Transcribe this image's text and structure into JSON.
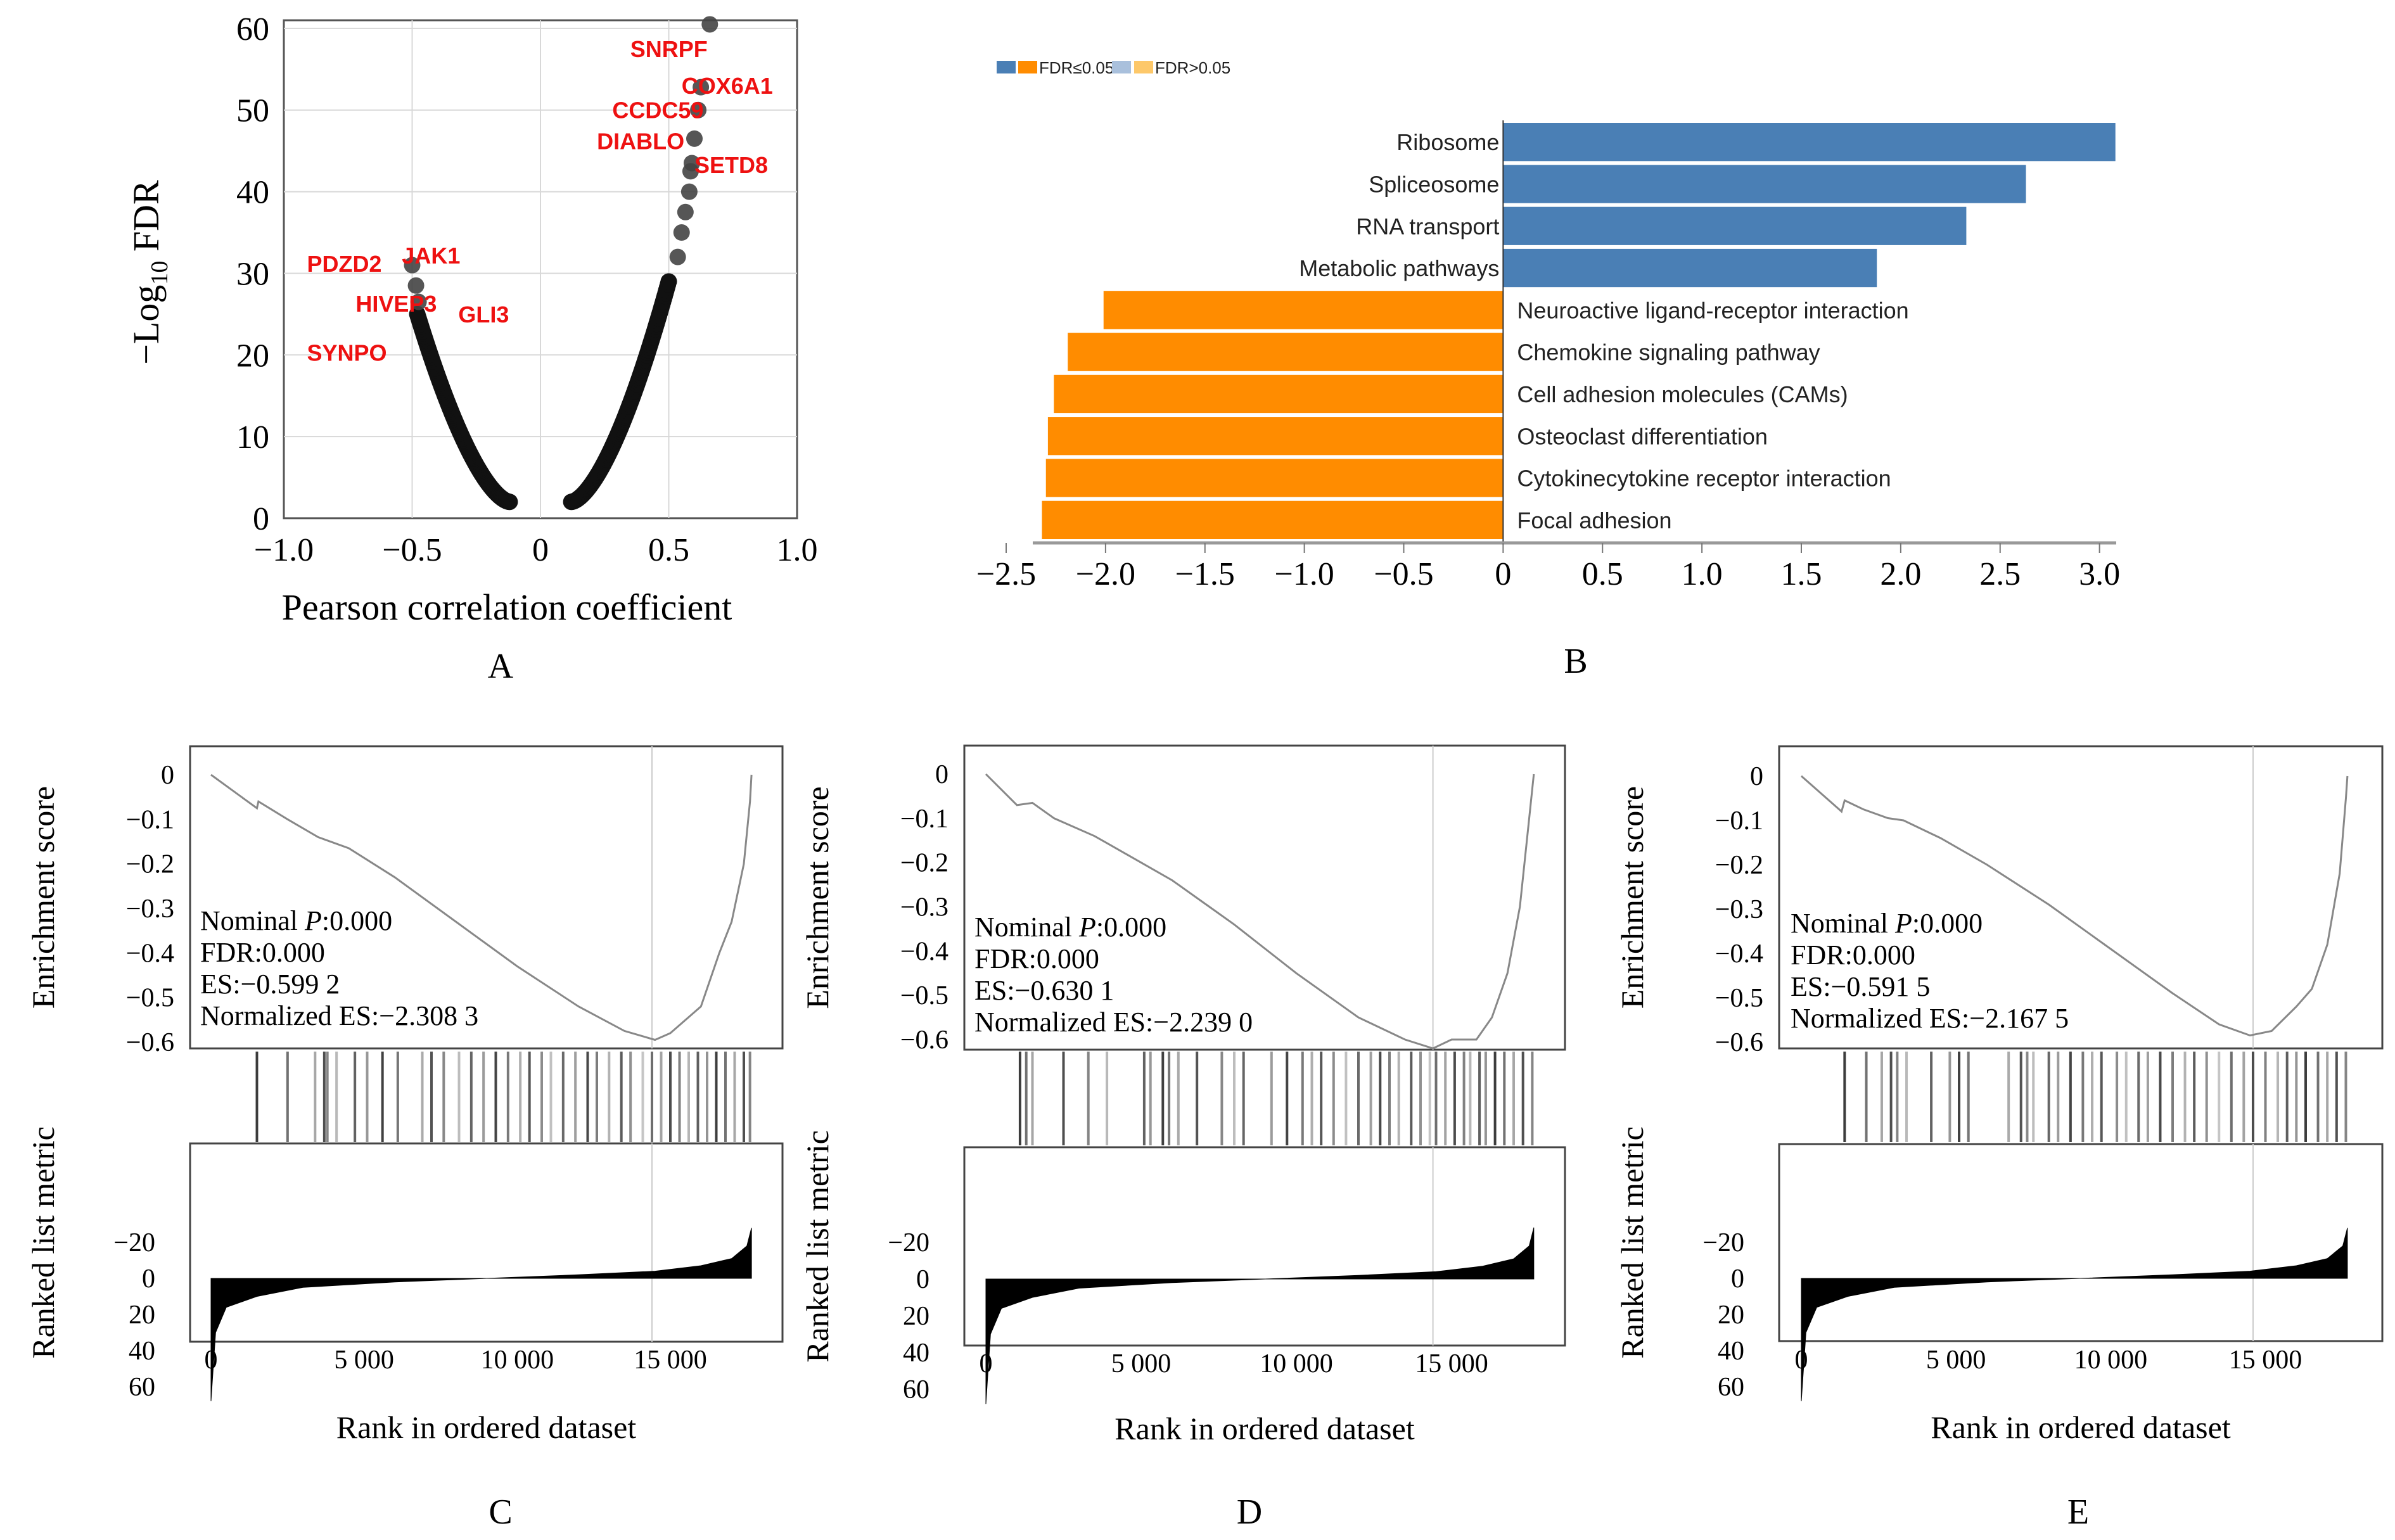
{
  "chart_data": [
    {
      "id": "A",
      "type": "scatter",
      "panel_label": "A",
      "xlabel": "Pearson correlation coefficient",
      "ylabel_prefix": "−Log",
      "ylabel_sub": "10",
      "ylabel_suffix": " FDR",
      "xlim": [
        -1.0,
        1.0
      ],
      "ylim": [
        0,
        61
      ],
      "grid": true,
      "xticks": [
        -1.0,
        -0.5,
        0,
        0.5,
        1.0
      ],
      "xtick_labels": [
        "−1.0",
        "−0.5",
        "0",
        "0.5",
        "1.0"
      ],
      "yticks": [
        0,
        10,
        20,
        30,
        40,
        50,
        60
      ],
      "ytick_labels": [
        "0",
        "10",
        "20",
        "30",
        "40",
        "50",
        "60"
      ],
      "negative_curve": {
        "r_start": -0.12,
        "r_end": -0.48,
        "fdr_start": 2,
        "fdr_end": 25
      },
      "positive_curve": {
        "r_start": 0.12,
        "r_end": 0.5,
        "fdr_start": 2,
        "fdr_end": 29
      },
      "highlight_points": [
        {
          "r": -0.5,
          "y": 31
        },
        {
          "r": -0.485,
          "y": 28.5
        },
        {
          "r": -0.475,
          "y": 26.5
        },
        {
          "r": 0.66,
          "y": 60.5
        },
        {
          "r": 0.625,
          "y": 52.8
        },
        {
          "r": 0.615,
          "y": 50
        },
        {
          "r": 0.6,
          "y": 46.5
        },
        {
          "r": 0.59,
          "y": 43.5
        },
        {
          "r": 0.585,
          "y": 42.5
        },
        {
          "r": 0.58,
          "y": 40
        },
        {
          "r": 0.565,
          "y": 37.5
        },
        {
          "r": 0.55,
          "y": 35
        },
        {
          "r": 0.535,
          "y": 32
        }
      ],
      "labels": [
        {
          "text": "SNRPF",
          "r": 0.35,
          "y": 56.5
        },
        {
          "text": "COX6A1",
          "r": 0.55,
          "y": 52
        },
        {
          "text": "CCDC59",
          "r": 0.28,
          "y": 49
        },
        {
          "text": "DIABLO",
          "r": 0.22,
          "y": 45.2
        },
        {
          "text": "SETD8",
          "r": 0.6,
          "y": 42.3
        },
        {
          "text": "PDZD2",
          "r": -0.91,
          "y": 30.2
        },
        {
          "text": "JAK1",
          "r": -0.54,
          "y": 31.2
        },
        {
          "text": "HIVEP3",
          "r": -0.72,
          "y": 25.3
        },
        {
          "text": "GLI3",
          "r": -0.32,
          "y": 24
        },
        {
          "text": "SYNPO",
          "r": -0.91,
          "y": 19.3
        }
      ],
      "label_color": "#ee1111"
    },
    {
      "id": "B",
      "type": "bar",
      "orientation": "horizontal",
      "panel_label": "B",
      "legend": [
        {
          "colors": [
            "#4a7fb5",
            "#ff8c00"
          ],
          "label": "FDR≤0.05"
        },
        {
          "colors": [
            "#a9c0dc",
            "#fdc86a"
          ],
          "label": "FDR>0.05"
        }
      ],
      "legend_position": "top-left",
      "xlim": [
        -2.5,
        3.1
      ],
      "xticks": [
        -2.5,
        -2.0,
        -1.5,
        -1.0,
        -0.5,
        0,
        0.5,
        1.0,
        1.5,
        2.0,
        2.5,
        3.0
      ],
      "xtick_labels": [
        "−2.5",
        "−2.0",
        "−1.5",
        "−1.0",
        "−0.5",
        "0",
        "0.5",
        "1.0",
        "1.5",
        "2.0",
        "2.5",
        "3.0"
      ],
      "categories": [
        "Ribosome",
        "Spliceosome",
        "RNA transport",
        "Metabolic pathways",
        "Neuroactive ligand-receptor interaction",
        "Chemokine signaling pathway",
        "Cell adhesion molecules (CAMs)",
        "Osteoclast differentiation",
        "Cytokinecytokine receptor interaction",
        "Focal adhesion"
      ],
      "values": [
        3.08,
        2.63,
        2.33,
        1.88,
        -2.01,
        -2.19,
        -2.26,
        -2.29,
        -2.3,
        -2.32
      ],
      "colors": [
        "#4a7fb5",
        "#4a7fb5",
        "#4a7fb5",
        "#4a7fb5",
        "#ff8c00",
        "#ff8c00",
        "#ff8c00",
        "#ff8c00",
        "#ff8c00",
        "#ff8c00"
      ]
    },
    {
      "id": "C",
      "type": "line",
      "panel_label": "C",
      "ylabel_top": "Enrichment score",
      "ylabel_bottom": "Ranked list metric",
      "xlabel": "Rank in ordered dataset",
      "es_yticks": [
        0,
        -0.1,
        -0.2,
        -0.3,
        -0.4,
        -0.5,
        -0.6
      ],
      "es_ytick_labels": [
        "0",
        "−0.1",
        "−0.2",
        "−0.3",
        "−0.4",
        "−0.5",
        "−0.6"
      ],
      "metric_yticks": [
        60,
        40,
        20,
        0,
        -20
      ],
      "metric_ytick_labels": [
        "60",
        "40",
        "20",
        "0",
        "−20"
      ],
      "xticks": [
        0,
        5000,
        10000,
        15000
      ],
      "xtick_labels": [
        "0",
        "5 000",
        "10 000",
        "15 000"
      ],
      "xlim": [
        0,
        18000
      ],
      "es_curve": [
        [
          0,
          0
        ],
        [
          1500,
          -0.075
        ],
        [
          1550,
          -0.06
        ],
        [
          2500,
          -0.1
        ],
        [
          3500,
          -0.14
        ],
        [
          4500,
          -0.165
        ],
        [
          6000,
          -0.23
        ],
        [
          8000,
          -0.33
        ],
        [
          10000,
          -0.43
        ],
        [
          12000,
          -0.52
        ],
        [
          13500,
          -0.575
        ],
        [
          14500,
          -0.595
        ],
        [
          15000,
          -0.58
        ],
        [
          16000,
          -0.52
        ],
        [
          16600,
          -0.4
        ],
        [
          17000,
          -0.33
        ],
        [
          17400,
          -0.2
        ],
        [
          17600,
          -0.06
        ],
        [
          17650,
          0
        ]
      ],
      "min_rank": 14400,
      "stats": {
        "nominal_p_prefix": "Nominal ",
        "nominal_p_symbol": "P",
        "nominal_p_value": ":0.000",
        "fdr": "FDR:0.000",
        "es": "ES:−0.599 2",
        "nes": "Normalized ES:−2.308 3"
      },
      "hit_ranks": [
        1500,
        2500,
        3400,
        3700,
        3800,
        4100,
        4700,
        5100,
        5600,
        6100,
        6900,
        7200,
        7600,
        8100,
        8500,
        8900,
        9300,
        9700,
        10100,
        10400,
        10800,
        11100,
        11500,
        11900,
        12300,
        12600,
        13000,
        13400,
        13700,
        14100,
        14400,
        14700,
        15000,
        15300,
        15600,
        15900,
        16200,
        16500,
        16800,
        17100,
        17400,
        17600
      ],
      "metric_range": [
        68,
        -30
      ],
      "metric_curve": [
        [
          0,
          68
        ],
        [
          150,
          30
        ],
        [
          500,
          16
        ],
        [
          1500,
          10
        ],
        [
          3000,
          5
        ],
        [
          6000,
          2
        ],
        [
          9000,
          0
        ],
        [
          12000,
          -2
        ],
        [
          14500,
          -4
        ],
        [
          16000,
          -7
        ],
        [
          17000,
          -11
        ],
        [
          17500,
          -18
        ],
        [
          17650,
          -28
        ]
      ]
    },
    {
      "id": "D",
      "type": "line",
      "panel_label": "D",
      "ylabel_top": "Enrichment score",
      "ylabel_bottom": "Ranked list metric",
      "xlabel": "Rank in ordered dataset",
      "es_yticks": [
        0,
        -0.1,
        -0.2,
        -0.3,
        -0.4,
        -0.5,
        -0.6
      ],
      "es_ytick_labels": [
        "0",
        "−0.1",
        "−0.2",
        "−0.3",
        "−0.4",
        "−0.5",
        "−0.6"
      ],
      "metric_yticks": [
        60,
        40,
        20,
        0,
        -20
      ],
      "metric_ytick_labels": [
        "60",
        "40",
        "20",
        "0",
        "−20"
      ],
      "xticks": [
        0,
        5000,
        10000,
        15000
      ],
      "xtick_labels": [
        "0",
        "5 000",
        "10 000",
        "15 000"
      ],
      "xlim": [
        0,
        18000
      ],
      "es_curve": [
        [
          0,
          0
        ],
        [
          1000,
          -0.07
        ],
        [
          1500,
          -0.065
        ],
        [
          2200,
          -0.1
        ],
        [
          3500,
          -0.14
        ],
        [
          4000,
          -0.16
        ],
        [
          6000,
          -0.24
        ],
        [
          8000,
          -0.34
        ],
        [
          10000,
          -0.45
        ],
        [
          12000,
          -0.55
        ],
        [
          13500,
          -0.6
        ],
        [
          14400,
          -0.62
        ],
        [
          15000,
          -0.6
        ],
        [
          15800,
          -0.6
        ],
        [
          16300,
          -0.55
        ],
        [
          16800,
          -0.45
        ],
        [
          17200,
          -0.3
        ],
        [
          17500,
          -0.1
        ],
        [
          17650,
          0
        ]
      ],
      "min_rank": 14400,
      "stats": {
        "nominal_p_prefix": "Nominal ",
        "nominal_p_symbol": "P",
        "nominal_p_value": ":0.000",
        "fdr": "FDR:0.000",
        "es": "ES:−0.630 1",
        "nes": "Normalized ES:−2.239 0"
      },
      "hit_ranks": [
        1100,
        1300,
        1500,
        2500,
        3300,
        3900,
        5100,
        5300,
        5700,
        5900,
        6200,
        6800,
        7600,
        8000,
        8300,
        9200,
        9700,
        10200,
        10500,
        10800,
        11200,
        11600,
        12000,
        12400,
        12700,
        13000,
        13300,
        13700,
        14000,
        14300,
        14500,
        14800,
        15100,
        15400,
        15600,
        15900,
        16100,
        16400,
        16700,
        17000,
        17300,
        17600
      ],
      "metric_range": [
        68,
        -30
      ],
      "metric_curve": [
        [
          0,
          68
        ],
        [
          150,
          30
        ],
        [
          500,
          16
        ],
        [
          1500,
          10
        ],
        [
          3000,
          5
        ],
        [
          6000,
          2
        ],
        [
          9000,
          0
        ],
        [
          12000,
          -2
        ],
        [
          14500,
          -4
        ],
        [
          16000,
          -7
        ],
        [
          17000,
          -11
        ],
        [
          17500,
          -18
        ],
        [
          17650,
          -28
        ]
      ]
    },
    {
      "id": "E",
      "type": "line",
      "panel_label": "E",
      "ylabel_top": "Enrichment score",
      "ylabel_bottom": "Ranked list metric",
      "xlabel": "Rank in ordered dataset",
      "es_yticks": [
        0,
        -0.1,
        -0.2,
        -0.3,
        -0.4,
        -0.5,
        -0.6
      ],
      "es_ytick_labels": [
        "0",
        "−0.1",
        "−0.2",
        "−0.3",
        "−0.4",
        "−0.5",
        "−0.6"
      ],
      "metric_yticks": [
        60,
        40,
        20,
        0,
        -20
      ],
      "metric_ytick_labels": [
        "60",
        "40",
        "20",
        "0",
        "−20"
      ],
      "xticks": [
        0,
        5000,
        10000,
        15000
      ],
      "xtick_labels": [
        "0",
        "5 000",
        "10 000",
        "15 000"
      ],
      "xlim": [
        0,
        18000
      ],
      "es_curve": [
        [
          0,
          0
        ],
        [
          1300,
          -0.08
        ],
        [
          1400,
          -0.055
        ],
        [
          2000,
          -0.075
        ],
        [
          2800,
          -0.095
        ],
        [
          3300,
          -0.1
        ],
        [
          4500,
          -0.14
        ],
        [
          6000,
          -0.2
        ],
        [
          8000,
          -0.29
        ],
        [
          10000,
          -0.39
        ],
        [
          12000,
          -0.49
        ],
        [
          13500,
          -0.56
        ],
        [
          14500,
          -0.585
        ],
        [
          15200,
          -0.575
        ],
        [
          16000,
          -0.52
        ],
        [
          16500,
          -0.48
        ],
        [
          17000,
          -0.38
        ],
        [
          17400,
          -0.22
        ],
        [
          17600,
          -0.05
        ],
        [
          17650,
          0
        ]
      ],
      "min_rank": 14600,
      "stats": {
        "nominal_p_prefix": "Nominal ",
        "nominal_p_symbol": "P",
        "nominal_p_value": ":0.000",
        "fdr": "FDR:0.000",
        "es": "ES:−0.591 5",
        "nes": "Normalized ES:−2.167 5"
      },
      "hit_ranks": [
        1400,
        2100,
        2600,
        2900,
        3100,
        3400,
        4200,
        4800,
        5100,
        5400,
        6700,
        7100,
        7300,
        7500,
        8000,
        8300,
        8700,
        9100,
        9400,
        9700,
        10200,
        10500,
        10900,
        11200,
        11600,
        12000,
        12400,
        12700,
        13100,
        13500,
        13900,
        14300,
        14600,
        15000,
        15400,
        15700,
        16000,
        16300,
        16700,
        17000,
        17300,
        17600
      ],
      "metric_range": [
        68,
        -30
      ],
      "metric_curve": [
        [
          0,
          68
        ],
        [
          150,
          30
        ],
        [
          500,
          16
        ],
        [
          1500,
          10
        ],
        [
          3000,
          5
        ],
        [
          6000,
          2
        ],
        [
          9000,
          0
        ],
        [
          12000,
          -2
        ],
        [
          14500,
          -4
        ],
        [
          16000,
          -7
        ],
        [
          17000,
          -11
        ],
        [
          17500,
          -18
        ],
        [
          17650,
          -28
        ]
      ]
    }
  ]
}
